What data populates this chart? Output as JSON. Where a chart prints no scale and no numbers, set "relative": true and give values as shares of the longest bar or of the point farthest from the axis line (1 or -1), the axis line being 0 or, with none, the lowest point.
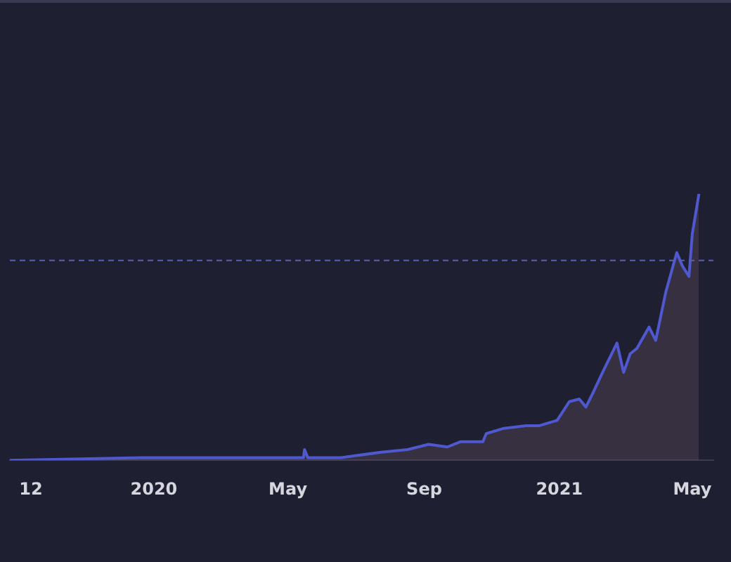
{
  "chart_data": {
    "type": "area",
    "relative": true,
    "grid": false,
    "legend": false,
    "marker": "none",
    "line_style": "solid",
    "xlim": [
      "2019-08-24",
      "2021-05-20"
    ],
    "xticks": [
      {
        "value": "2019-09-12",
        "label": "12"
      },
      {
        "value": "2020-01-01",
        "label": "2020"
      },
      {
        "value": "2020-05-01",
        "label": "May"
      },
      {
        "value": "2020-09-01",
        "label": "Sep"
      },
      {
        "value": "2021-01-01",
        "label": "2021"
      },
      {
        "value": "2021-05-01",
        "label": "May"
      }
    ],
    "x": [
      "2019-08-24",
      "2019-12-21",
      "2020-04-19",
      "2020-05-15",
      "2020-05-16",
      "2020-05-19",
      "2020-06-18",
      "2020-07-24",
      "2020-08-17",
      "2020-09-05",
      "2020-09-22",
      "2020-10-04",
      "2020-10-24",
      "2020-10-27",
      "2020-11-12",
      "2020-12-02",
      "2020-12-14",
      "2020-12-30",
      "2021-01-10",
      "2021-01-19",
      "2021-01-25",
      "2021-01-31",
      "2021-02-09",
      "2021-02-22",
      "2021-02-28",
      "2021-03-06",
      "2021-03-12",
      "2021-03-23",
      "2021-03-29",
      "2021-04-07",
      "2021-04-17",
      "2021-04-22",
      "2021-04-28",
      "2021-05-01",
      "2021-05-07"
    ],
    "series": [
      {
        "color": "#5058d0",
        "values": [
          0,
          0.01,
          0.01,
          0.01,
          0.04,
          0.01,
          0.01,
          0.03,
          0.04,
          0.06,
          0.05,
          0.07,
          0.07,
          0.1,
          0.12,
          0.13,
          0.13,
          0.15,
          0.22,
          0.23,
          0.2,
          0.25,
          0.33,
          0.44,
          0.33,
          0.4,
          0.42,
          0.5,
          0.45,
          0.63,
          0.78,
          0.73,
          0.69,
          0.85,
          1
        ]
      }
    ],
    "ref_lines": [
      {
        "axis": "y",
        "value": 0.75,
        "color": "#5a5fb0",
        "line_style": "dashed"
      }
    ]
  }
}
